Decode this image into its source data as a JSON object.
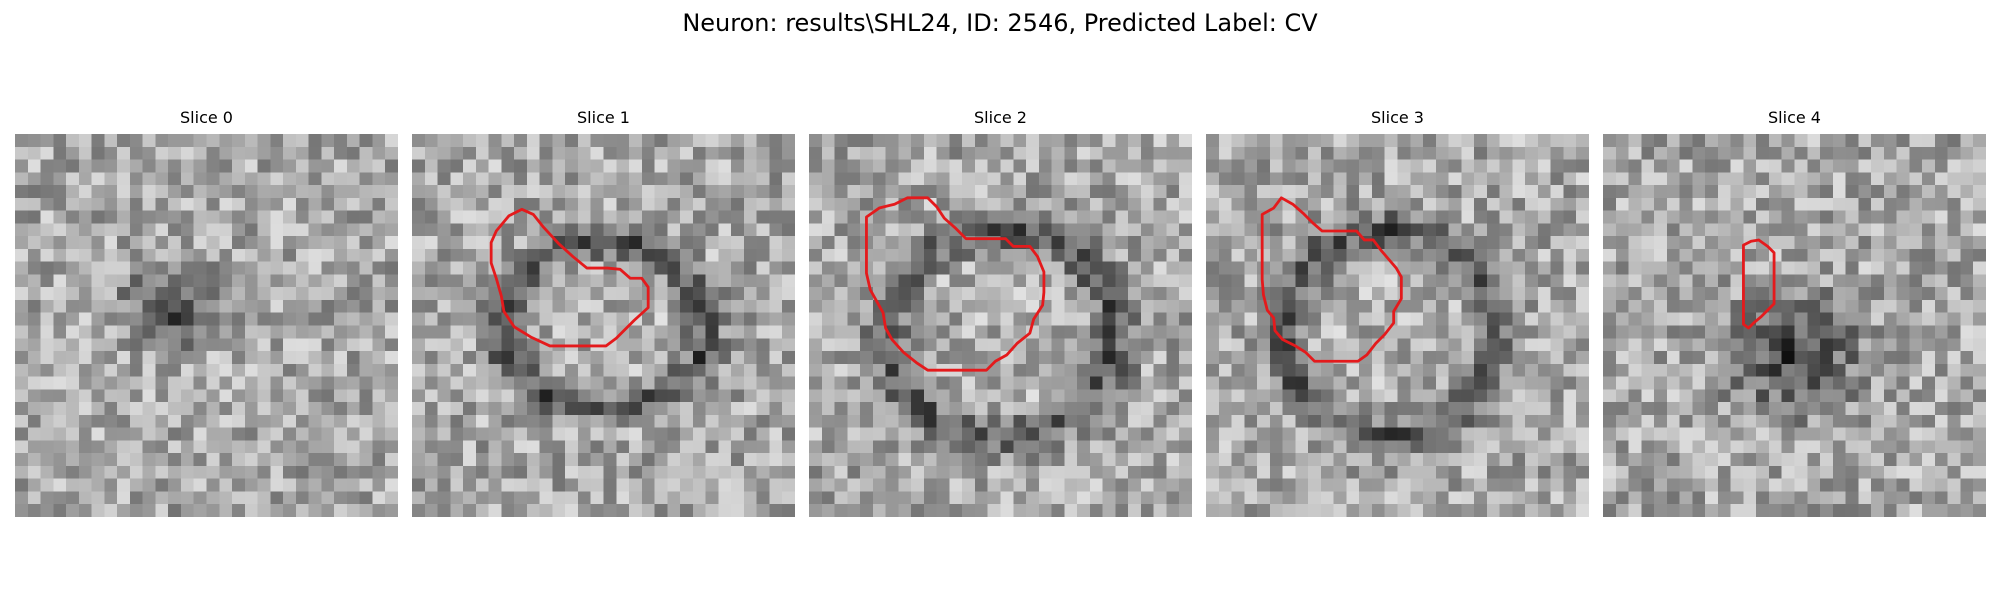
{
  "figure": {
    "title": "Neuron: results\\SHL24, ID: 2546, Predicted Label: CV"
  },
  "style": {
    "contour_color": "#e41a1c",
    "colormap": "grayscale"
  },
  "slices": [
    {
      "title": "Slice 0",
      "seed": 11,
      "blob": [
        0.42,
        0.45,
        0.15,
        0.11
      ],
      "has_contour": false
    },
    {
      "title": "Slice 1",
      "seed": 23,
      "ring": [
        0.5,
        0.5,
        0.27,
        0.22
      ],
      "has_contour": true
    },
    {
      "title": "Slice 2",
      "seed": 37,
      "ring": [
        0.5,
        0.52,
        0.3,
        0.27
      ],
      "has_contour": true
    },
    {
      "title": "Slice 3",
      "seed": 51,
      "ring": [
        0.48,
        0.52,
        0.28,
        0.27
      ],
      "has_contour": true
    },
    {
      "title": "Slice 4",
      "seed": 67,
      "blob": [
        0.5,
        0.58,
        0.2,
        0.18
      ],
      "has_contour": true
    }
  ]
}
